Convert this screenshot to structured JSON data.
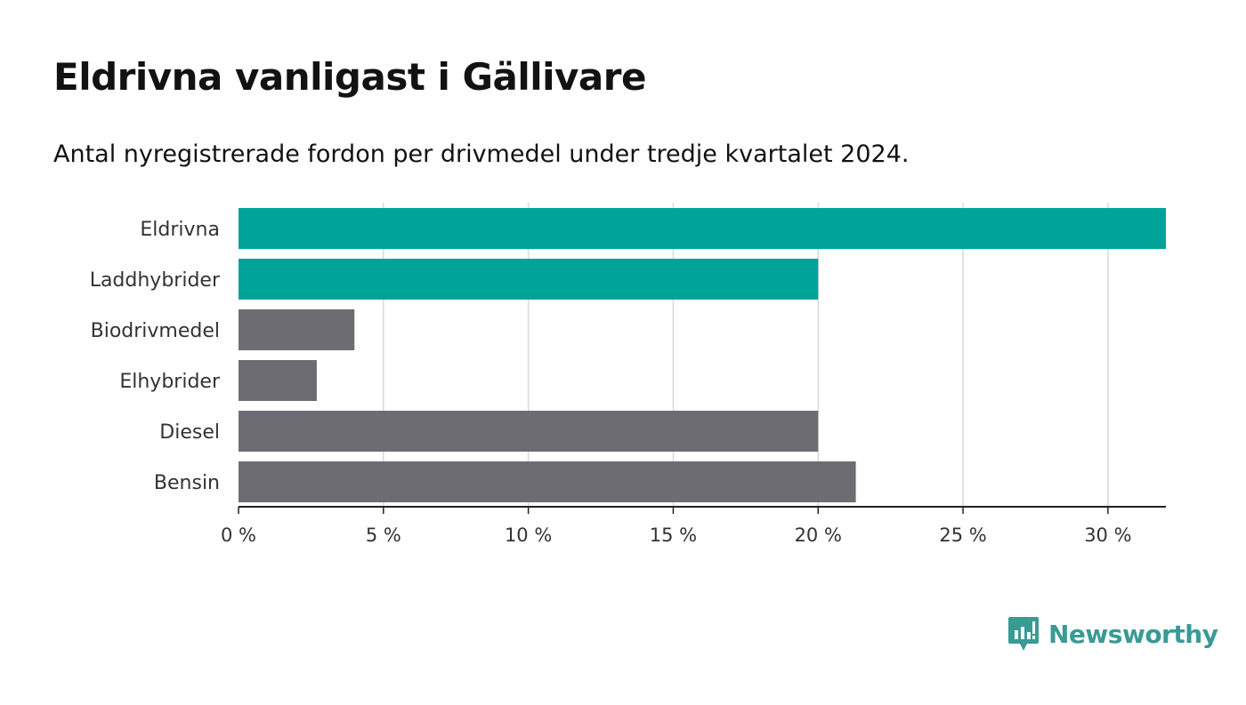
{
  "header": {
    "title": "Eldrivna vanligast i Gällivare",
    "subtitle": "Antal nyregistrerade fordon per drivmedel under tredje kvartalet 2024."
  },
  "colors": {
    "highlight": "#00a398",
    "default": "#6d6c72",
    "brand": "#3a9a94"
  },
  "chart_data": {
    "type": "bar",
    "orientation": "horizontal",
    "title": "Eldrivna vanligast i Gällivare",
    "subtitle": "Antal nyregistrerade fordon per drivmedel under tredje kvartalet 2024.",
    "categories": [
      "Eldrivna",
      "Laddhybrider",
      "Biodrivmedel",
      "Elhybrider",
      "Diesel",
      "Bensin"
    ],
    "values": [
      32.0,
      20.0,
      4.0,
      2.7,
      20.0,
      21.3
    ],
    "highlighted": [
      true,
      true,
      false,
      false,
      false,
      false
    ],
    "xlim": [
      0,
      32
    ],
    "xticks": [
      0,
      5,
      10,
      15,
      20,
      25,
      30
    ],
    "xtick_labels": [
      "0 %",
      "5 %",
      "10 %",
      "15 %",
      "20 %",
      "25 %",
      "30 %"
    ],
    "xlabel": "",
    "ylabel": "",
    "grid": "vertical"
  },
  "logo": {
    "text": "Newsworthy",
    "icon": "chart-bubble-icon"
  }
}
